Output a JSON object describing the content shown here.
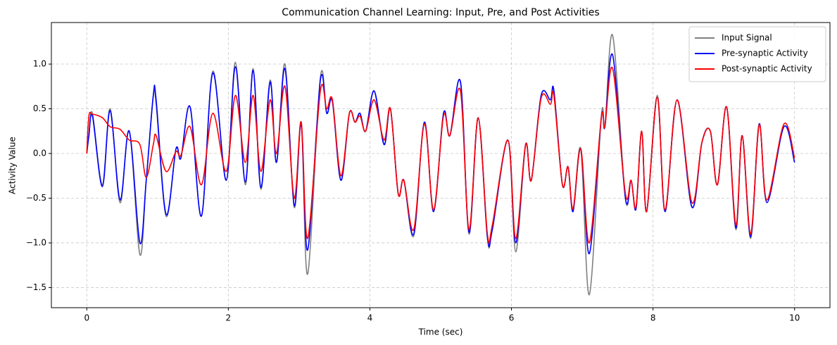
{
  "chart_data": {
    "type": "line",
    "title": "Communication Channel Learning: Input, Pre, and Post Activities",
    "xlabel": "Time (sec)",
    "ylabel": "Activity Value",
    "x": [
      0,
      0.03,
      0.08,
      0.22,
      0.33,
      0.47,
      0.6,
      0.75,
      0.84,
      0.94,
      0.98,
      1.12,
      1.26,
      1.33,
      1.46,
      1.62,
      1.78,
      1.97,
      2.1,
      2.24,
      2.35,
      2.46,
      2.59,
      2.68,
      2.8,
      2.93,
      3.03,
      3.12,
      3.3,
      3.39,
      3.47,
      3.59,
      3.71,
      3.79,
      3.86,
      3.94,
      4.06,
      4.2,
      4.29,
      4.4,
      4.48,
      4.62,
      4.77,
      4.9,
      5.04,
      5.13,
      5.28,
      5.4,
      5.53,
      5.66,
      5.73,
      5.95,
      6.06,
      6.2,
      6.28,
      6.42,
      6.55,
      6.6,
      6.72,
      6.8,
      6.87,
      6.98,
      7.1,
      7.27,
      7.32,
      7.43,
      7.61,
      7.69,
      7.76,
      7.84,
      7.91,
      8.06,
      8.17,
      8.34,
      8.55,
      8.69,
      8.81,
      8.91,
      9.04,
      9.17,
      9.26,
      9.38,
      9.5,
      9.61,
      9.85,
      10
    ],
    "series": [
      {
        "name": "Input Signal",
        "color": "#808080",
        "values": [
          0,
          0.2,
          0.45,
          -0.35,
          0.5,
          -0.55,
          0.25,
          -1.13,
          -0.3,
          0.65,
          0.55,
          -0.7,
          0.05,
          -0.05,
          0.52,
          -0.7,
          0.92,
          -0.3,
          1.02,
          -0.35,
          0.95,
          -0.4,
          0.82,
          -0.1,
          1.0,
          -0.6,
          0.35,
          -1.35,
          0.85,
          0.45,
          0.6,
          -0.3,
          0.45,
          0.35,
          0.45,
          0.25,
          0.7,
          0.1,
          0.5,
          -0.45,
          -0.3,
          -0.92,
          0.35,
          -0.65,
          0.45,
          0.2,
          0.8,
          -0.9,
          0.4,
          -0.95,
          -0.85,
          0.15,
          -1.1,
          0.1,
          -0.3,
          0.65,
          0.6,
          0.7,
          -0.35,
          -0.15,
          -0.65,
          0.05,
          -1.58,
          0.42,
          0.3,
          1.32,
          -0.5,
          -0.3,
          -0.62,
          0.25,
          -0.65,
          0.65,
          -0.65,
          0.6,
          -0.6,
          0.12,
          0.25,
          -0.35,
          0.52,
          -0.85,
          0.2,
          -0.95,
          0.33,
          -0.55,
          0.3,
          -0.1
        ]
      },
      {
        "name": "Pre-synaptic Activity",
        "color": "#0000ff",
        "values": [
          0,
          0.2,
          0.42,
          -0.37,
          0.48,
          -0.52,
          0.25,
          -1.0,
          -0.3,
          0.65,
          0.6,
          -0.68,
          0.05,
          -0.05,
          0.52,
          -0.7,
          0.9,
          -0.3,
          0.97,
          -0.32,
          0.93,
          -0.38,
          0.8,
          -0.1,
          0.95,
          -0.58,
          0.33,
          -1.08,
          0.82,
          0.45,
          0.58,
          -0.3,
          0.45,
          0.35,
          0.45,
          0.25,
          0.7,
          0.1,
          0.5,
          -0.45,
          -0.3,
          -0.9,
          0.35,
          -0.65,
          0.45,
          0.2,
          0.8,
          -0.88,
          0.4,
          -0.93,
          -0.85,
          0.15,
          -1.0,
          0.1,
          -0.3,
          0.65,
          0.6,
          0.7,
          -0.35,
          -0.15,
          -0.65,
          0.05,
          -1.12,
          0.4,
          0.3,
          1.1,
          -0.5,
          -0.3,
          -0.62,
          0.25,
          -0.65,
          0.63,
          -0.65,
          0.6,
          -0.6,
          0.12,
          0.25,
          -0.35,
          0.52,
          -0.83,
          0.2,
          -0.93,
          0.33,
          -0.55,
          0.3,
          -0.1
        ]
      },
      {
        "name": "Post-synaptic Activity",
        "color": "#ff0000",
        "values": [
          0,
          0.42,
          0.44,
          0.4,
          0.3,
          0.27,
          0.15,
          0.1,
          -0.27,
          0.1,
          0.2,
          -0.2,
          0.02,
          -0.02,
          0.3,
          -0.35,
          0.45,
          -0.2,
          0.65,
          -0.1,
          0.65,
          -0.2,
          0.6,
          0.0,
          0.75,
          -0.5,
          0.35,
          -0.95,
          0.7,
          0.5,
          0.6,
          -0.25,
          0.45,
          0.35,
          0.42,
          0.25,
          0.6,
          0.15,
          0.5,
          -0.45,
          -0.3,
          -0.85,
          0.33,
          -0.63,
          0.42,
          0.2,
          0.7,
          -0.85,
          0.4,
          -0.9,
          -0.8,
          0.15,
          -0.95,
          0.1,
          -0.3,
          0.62,
          0.55,
          0.65,
          -0.35,
          -0.15,
          -0.62,
          0.05,
          -1.0,
          0.4,
          0.3,
          0.95,
          -0.45,
          -0.3,
          -0.6,
          0.25,
          -0.65,
          0.63,
          -0.63,
          0.6,
          -0.55,
          0.12,
          0.25,
          -0.35,
          0.52,
          -0.8,
          0.2,
          -0.9,
          0.32,
          -0.52,
          0.33,
          -0.05
        ]
      }
    ],
    "xlim": [
      -0.5,
      10.5
    ],
    "ylim": [
      -1.725,
      1.465
    ],
    "xticks": [
      0,
      2,
      4,
      6,
      8,
      10
    ],
    "yticks": [
      {
        "value": -1.5,
        "label": "−1.5"
      },
      {
        "value": -1.0,
        "label": "−1.0"
      },
      {
        "value": -0.5,
        "label": "−0.5"
      },
      {
        "value": 0.0,
        "label": "0.0"
      },
      0.5,
      {
        "value": 1.0,
        "label": "1.0"
      }
    ],
    "grid": true,
    "legend": "upper right"
  }
}
